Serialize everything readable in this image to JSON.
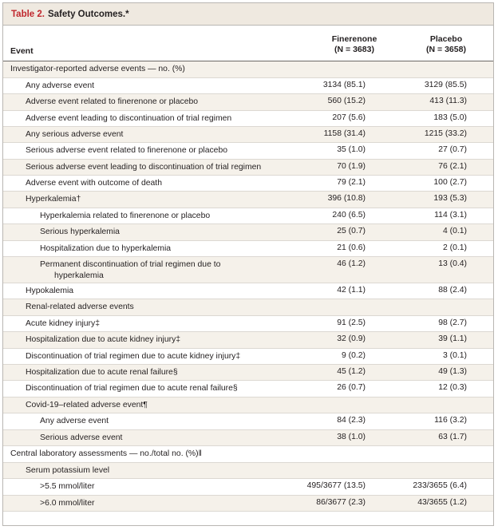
{
  "table": {
    "title_number": "Table 2.",
    "title_text": "Safety Outcomes.*"
  },
  "columns": {
    "event": "Event",
    "finerenone_name": "Finerenone",
    "finerenone_n": "(N = 3683)",
    "placebo_name": "Placebo",
    "placebo_n": "(N = 3658)"
  },
  "rows": [
    {
      "label": "Investigator-reported adverse events — no. (%)",
      "v1": "",
      "v2": ""
    },
    {
      "label": "Any adverse event",
      "v1": "3134 (85.1)",
      "v2": "3129 (85.5)"
    },
    {
      "label": "Adverse event related to finerenone or placebo",
      "v1": "560 (15.2)",
      "v2": "413 (11.3)"
    },
    {
      "label": "Adverse event leading to discontinuation of trial regimen",
      "v1": "207 (5.6)",
      "v2": "183 (5.0)"
    },
    {
      "label": "Any serious adverse event",
      "v1": "1158 (31.4)",
      "v2": "1215 (33.2)"
    },
    {
      "label": "Serious adverse event related to finerenone or placebo",
      "v1": "35 (1.0)",
      "v2": "27 (0.7)"
    },
    {
      "label": "Serious adverse event leading to discontinuation of trial regimen",
      "v1": "70 (1.9)",
      "v2": "76 (2.1)"
    },
    {
      "label": "Adverse event with outcome of death",
      "v1": "79 (2.1)",
      "v2": "100 (2.7)"
    },
    {
      "label": "Hyperkalemia†",
      "v1": "396 (10.8)",
      "v2": "193 (5.3)"
    },
    {
      "label": "Hyperkalemia related to finerenone or placebo",
      "v1": "240 (6.5)",
      "v2": "114 (3.1)"
    },
    {
      "label": "Serious hyperkalemia",
      "v1": "25 (0.7)",
      "v2": "4 (0.1)"
    },
    {
      "label": "Hospitalization due to hyperkalemia",
      "v1": "21 (0.6)",
      "v2": "2 (0.1)"
    },
    {
      "label": "Permanent discontinuation of trial regimen due to",
      "label2": "hyperkalemia",
      "v1": "46 (1.2)",
      "v2": "13 (0.4)"
    },
    {
      "label": "Hypokalemia",
      "v1": "42 (1.1)",
      "v2": "88 (2.4)"
    },
    {
      "label": "Renal-related adverse events",
      "v1": "",
      "v2": ""
    },
    {
      "label": "Acute kidney injury‡",
      "v1": "91 (2.5)",
      "v2": "98 (2.7)"
    },
    {
      "label": "Hospitalization due to acute kidney injury‡",
      "v1": "32 (0.9)",
      "v2": "39 (1.1)"
    },
    {
      "label": "Discontinuation of trial regimen due to acute kidney injury‡",
      "v1": "9 (0.2)",
      "v2": "3 (0.1)"
    },
    {
      "label": "Hospitalization due to acute renal failure§",
      "v1": "45 (1.2)",
      "v2": "49 (1.3)"
    },
    {
      "label": "Discontinuation of trial regimen due to acute renal failure§",
      "v1": "26 (0.7)",
      "v2": "12 (0.3)"
    },
    {
      "label": "Covid-19–related adverse event¶",
      "v1": "",
      "v2": ""
    },
    {
      "label": "Any adverse event",
      "v1": "84 (2.3)",
      "v2": "116 (3.2)"
    },
    {
      "label": "Serious adverse event",
      "v1": "38 (1.0)",
      "v2": "63 (1.7)"
    },
    {
      "label": "Central laboratory assessments — no./total no. (%)‖",
      "v1": "",
      "v2": ""
    },
    {
      "label": "Serum potassium level",
      "v1": "",
      "v2": ""
    },
    {
      "label": ">5.5 mmol/liter",
      "v1": "495/3677 (13.5)",
      "v2": "233/3655 (6.4)"
    },
    {
      "label": ">6.0 mmol/liter",
      "v1": "86/3677 (2.3)",
      "v2": "43/3655 (1.2)"
    }
  ]
}
